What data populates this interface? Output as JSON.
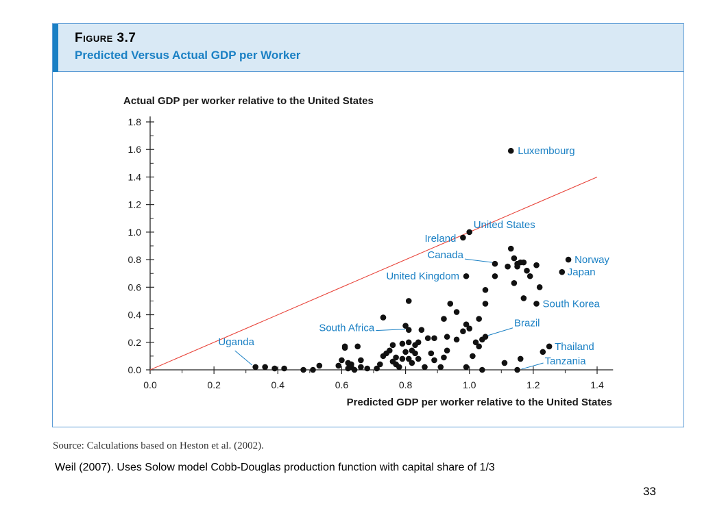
{
  "figure": {
    "number": "Figure 3.7",
    "title": "Predicted Versus Actual GDP per Worker"
  },
  "source": "Source: Calculations based on Heston et al. (2002).",
  "note": "Weil (2007).  Uses Solow model Cobb-Douglas production function with capital share of 1/3",
  "page_number": "33",
  "colors": {
    "accent": "#1a80c4",
    "header_bg": "#d9e9f5",
    "border": "#5b9bd5",
    "dots": "#111111",
    "line": "#e8443a",
    "labels": "#1a80c4"
  },
  "chart_data": {
    "type": "scatter",
    "xlabel": "Predicted GDP per worker relative to the United States",
    "ylabel": "Actual GDP per worker relative to the United States",
    "xlim": [
      0.0,
      1.45
    ],
    "ylim": [
      0.0,
      1.8
    ],
    "xticks": [
      0.0,
      0.2,
      0.4,
      0.6,
      0.8,
      1.0,
      1.2,
      1.4
    ],
    "yticks": [
      0.0,
      0.2,
      0.4,
      0.6,
      0.8,
      1.0,
      1.2,
      1.4,
      1.6,
      1.8
    ],
    "xtick_labels": [
      "0.0",
      "0.2",
      "0.4",
      "0.6",
      "0.8",
      "1.0",
      "1.2",
      "1.4"
    ],
    "ytick_labels": [
      "0.0",
      "0.2",
      "0.4",
      "0.6",
      "0.8",
      "1.0",
      "1.2",
      "1.4",
      "1.6",
      "1.8"
    ],
    "reference_line": {
      "x": [
        0.0,
        1.4
      ],
      "y": [
        0.0,
        1.4
      ]
    },
    "labeled_points": [
      {
        "name": "Luxembourg",
        "x": 1.13,
        "y": 1.59
      },
      {
        "name": "United States",
        "x": 1.0,
        "y": 1.0
      },
      {
        "name": "Ireland",
        "x": 0.98,
        "y": 0.96
      },
      {
        "name": "Canada",
        "x": 1.08,
        "y": 0.77
      },
      {
        "name": "Norway",
        "x": 1.31,
        "y": 0.8
      },
      {
        "name": "Japan",
        "x": 1.29,
        "y": 0.71
      },
      {
        "name": "United Kingdom",
        "x": 0.99,
        "y": 0.68
      },
      {
        "name": "South Korea",
        "x": 1.21,
        "y": 0.48
      },
      {
        "name": "Brazil",
        "x": 1.05,
        "y": 0.24
      },
      {
        "name": "South Africa",
        "x": 0.81,
        "y": 0.29
      },
      {
        "name": "Uganda",
        "x": 0.33,
        "y": 0.02
      },
      {
        "name": "Thailand",
        "x": 1.25,
        "y": 0.17
      },
      {
        "name": "Tanzania",
        "x": 1.15,
        "y": 0.0
      }
    ],
    "points": [
      [
        0.36,
        0.02
      ],
      [
        0.39,
        0.01
      ],
      [
        0.42,
        0.01
      ],
      [
        0.48,
        0.0
      ],
      [
        0.51,
        0.0
      ],
      [
        0.53,
        0.03
      ],
      [
        0.59,
        0.03
      ],
      [
        0.6,
        0.07
      ],
      [
        0.61,
        0.16
      ],
      [
        0.61,
        0.17
      ],
      [
        0.62,
        0.05
      ],
      [
        0.62,
        0.01
      ],
      [
        0.63,
        0.02
      ],
      [
        0.63,
        0.04
      ],
      [
        0.64,
        0.0
      ],
      [
        0.65,
        0.17
      ],
      [
        0.66,
        0.07
      ],
      [
        0.66,
        0.02
      ],
      [
        0.68,
        0.01
      ],
      [
        0.71,
        0.01
      ],
      [
        0.72,
        0.04
      ],
      [
        0.73,
        0.38
      ],
      [
        0.73,
        0.1
      ],
      [
        0.74,
        0.12
      ],
      [
        0.75,
        0.14
      ],
      [
        0.76,
        0.18
      ],
      [
        0.76,
        0.06
      ],
      [
        0.77,
        0.09
      ],
      [
        0.77,
        0.04
      ],
      [
        0.78,
        0.02
      ],
      [
        0.79,
        0.19
      ],
      [
        0.79,
        0.08
      ],
      [
        0.8,
        0.32
      ],
      [
        0.8,
        0.13
      ],
      [
        0.81,
        0.5
      ],
      [
        0.81,
        0.2
      ],
      [
        0.81,
        0.08
      ],
      [
        0.82,
        0.14
      ],
      [
        0.82,
        0.05
      ],
      [
        0.83,
        0.18
      ],
      [
        0.83,
        0.12
      ],
      [
        0.84,
        0.08
      ],
      [
        0.84,
        0.2
      ],
      [
        0.85,
        0.29
      ],
      [
        0.86,
        0.02
      ],
      [
        0.87,
        0.23
      ],
      [
        0.88,
        0.12
      ],
      [
        0.89,
        0.07
      ],
      [
        0.89,
        0.23
      ],
      [
        0.91,
        0.02
      ],
      [
        0.92,
        0.37
      ],
      [
        0.92,
        0.09
      ],
      [
        0.93,
        0.24
      ],
      [
        0.93,
        0.14
      ],
      [
        0.94,
        0.48
      ],
      [
        0.96,
        0.42
      ],
      [
        0.96,
        0.22
      ],
      [
        0.98,
        0.28
      ],
      [
        0.99,
        0.33
      ],
      [
        0.99,
        0.02
      ],
      [
        1.0,
        0.3
      ],
      [
        1.01,
        0.1
      ],
      [
        1.02,
        0.2
      ],
      [
        1.03,
        0.17
      ],
      [
        1.03,
        0.37
      ],
      [
        1.04,
        0.22
      ],
      [
        1.04,
        0.0
      ],
      [
        1.05,
        0.48
      ],
      [
        1.05,
        0.58
      ],
      [
        1.08,
        0.68
      ],
      [
        1.11,
        0.05
      ],
      [
        1.12,
        0.75
      ],
      [
        1.13,
        0.88
      ],
      [
        1.14,
        0.81
      ],
      [
        1.14,
        0.63
      ],
      [
        1.15,
        0.77
      ],
      [
        1.15,
        0.75
      ],
      [
        1.16,
        0.78
      ],
      [
        1.16,
        0.08
      ],
      [
        1.17,
        0.52
      ],
      [
        1.17,
        0.78
      ],
      [
        1.18,
        0.72
      ],
      [
        1.19,
        0.68
      ],
      [
        1.21,
        0.76
      ],
      [
        1.22,
        0.6
      ],
      [
        1.23,
        0.13
      ]
    ]
  }
}
